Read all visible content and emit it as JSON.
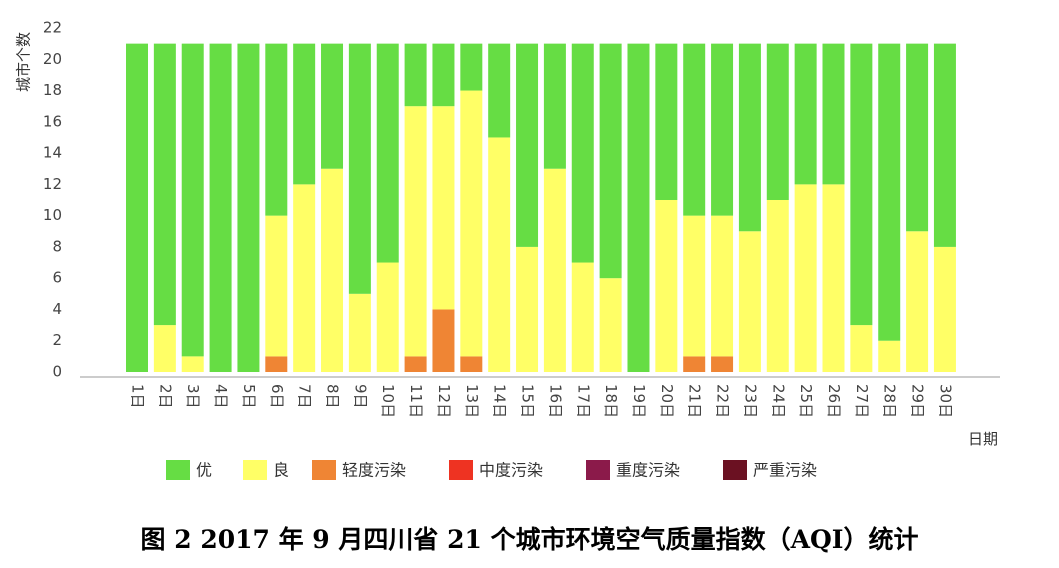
{
  "caption": "图 2 2017 年 9 月四川省 21 个城市环境空气质量指数（AQI）统计",
  "chart_data": {
    "type": "bar",
    "stacked": true,
    "ylabel": "城市个数",
    "xlabel": "日期",
    "ylim": [
      0,
      22
    ],
    "yticks": [
      0,
      2,
      4,
      6,
      8,
      10,
      12,
      14,
      16,
      18,
      20,
      22
    ],
    "grid": false,
    "legend_position": "bottom",
    "categories": [
      "1日",
      "2日",
      "3日",
      "4日",
      "5日",
      "6日",
      "7日",
      "8日",
      "9日",
      "10日",
      "11日",
      "12日",
      "13日",
      "14日",
      "15日",
      "16日",
      "17日",
      "18日",
      "19日",
      "20日",
      "21日",
      "22日",
      "23日",
      "24日",
      "25日",
      "26日",
      "27日",
      "28日",
      "29日",
      "30日"
    ],
    "series": [
      {
        "name": "轻度污染",
        "color": "#ef8534",
        "values": [
          0,
          0,
          0,
          0,
          0,
          1,
          0,
          0,
          0,
          0,
          1,
          4,
          1,
          0,
          0,
          0,
          0,
          0,
          0,
          0,
          1,
          1,
          0,
          0,
          0,
          0,
          0,
          0,
          0,
          0
        ]
      },
      {
        "name": "良",
        "color": "#ffff66",
        "values": [
          0,
          3,
          1,
          0,
          0,
          9,
          12,
          13,
          5,
          7,
          16,
          13,
          17,
          15,
          8,
          13,
          7,
          6,
          0,
          11,
          9,
          9,
          9,
          11,
          12,
          12,
          3,
          2,
          9,
          8
        ]
      },
      {
        "name": "优",
        "color": "#66dd44",
        "values": [
          21,
          18,
          20,
          21,
          21,
          11,
          9,
          8,
          16,
          14,
          4,
          4,
          3,
          6,
          13,
          8,
          14,
          15,
          21,
          10,
          11,
          11,
          12,
          10,
          9,
          9,
          18,
          19,
          12,
          13
        ]
      }
    ],
    "legend": [
      {
        "name": "优",
        "color": "#66dd44"
      },
      {
        "name": "良",
        "color": "#ffff66"
      },
      {
        "name": "轻度污染",
        "color": "#ef8534"
      },
      {
        "name": "中度污染",
        "color": "#ee3322"
      },
      {
        "name": "重度污染",
        "color": "#8b1a4a"
      },
      {
        "name": "严重污染",
        "color": "#6b1122"
      }
    ]
  }
}
